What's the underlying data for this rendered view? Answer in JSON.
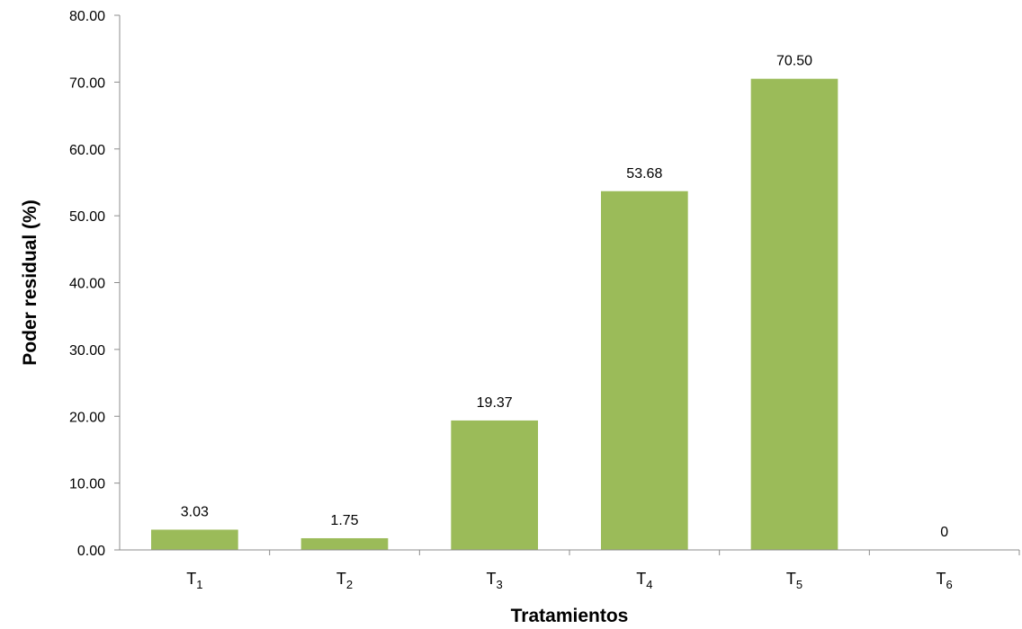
{
  "chart_data": {
    "type": "bar",
    "title": "",
    "xlabel": "Tratamientos",
    "ylabel": "Poder residual (%)",
    "ylim": [
      0,
      80
    ],
    "yticks": [
      "0.00",
      "10.00",
      "20.00",
      "30.00",
      "40.00",
      "50.00",
      "60.00",
      "70.00",
      "80.00"
    ],
    "categories": [
      {
        "letter": "T",
        "sub": "1"
      },
      {
        "letter": "T",
        "sub": "2"
      },
      {
        "letter": "T",
        "sub": "3"
      },
      {
        "letter": "T",
        "sub": "4"
      },
      {
        "letter": "T",
        "sub": "5"
      },
      {
        "letter": "T",
        "sub": "6"
      }
    ],
    "values": [
      3.03,
      1.75,
      19.37,
      53.68,
      70.5,
      0
    ],
    "data_labels": [
      "3.03",
      "1.75",
      "19.37",
      "53.68",
      "70.50",
      "0"
    ],
    "bar_color": "#9bbb59",
    "grid": false,
    "legend": "none"
  }
}
